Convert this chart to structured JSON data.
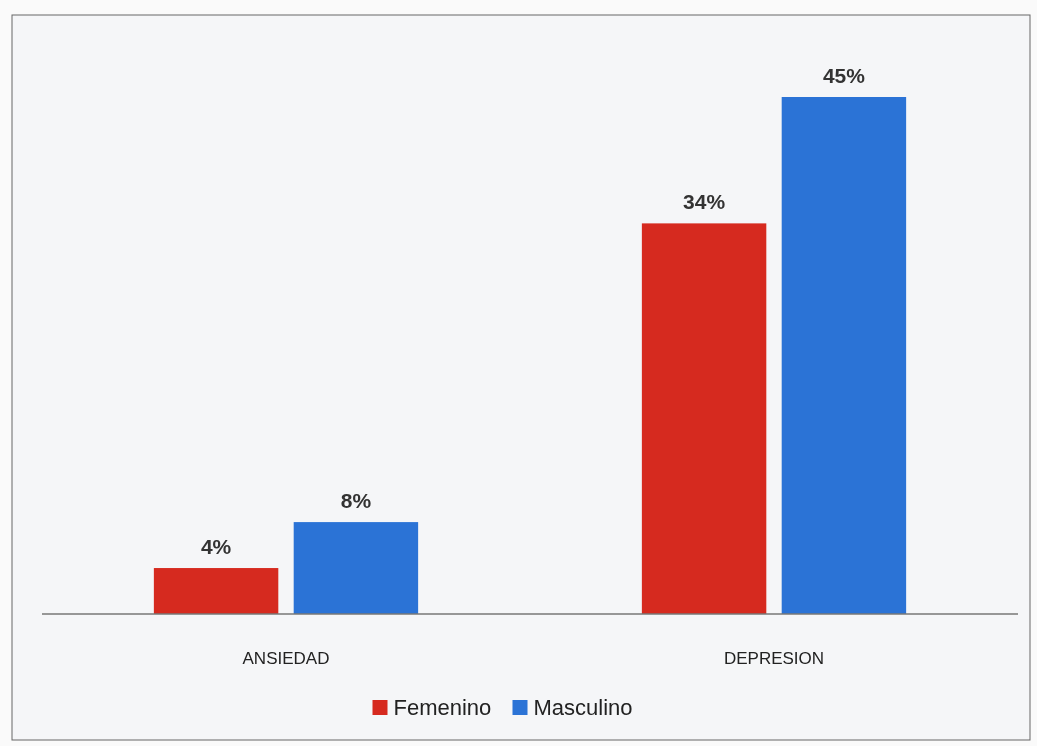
{
  "chart_data": {
    "type": "bar",
    "categories": [
      "ANSIEDAD",
      "DEPRESION"
    ],
    "series": [
      {
        "name": "Femenino",
        "color": "#d62a1f",
        "values": [
          4,
          34
        ],
        "value_labels": [
          "4%",
          "34%"
        ]
      },
      {
        "name": "Masculino",
        "color": "#2b73d6",
        "values": [
          8,
          45
        ],
        "value_labels": [
          "8%",
          "45%"
        ]
      }
    ],
    "legend": "bottom",
    "grid": false
  }
}
